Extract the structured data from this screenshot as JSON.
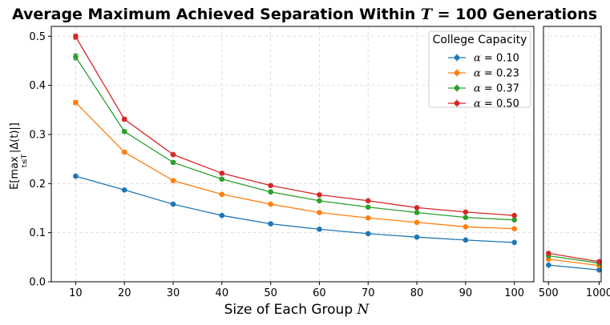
{
  "chart_data": {
    "type": "line",
    "title": "Average Maximum Achieved Separation Within T = 100 Generations",
    "title_parts": {
      "prefix": "Average Maximum Achieved Separation Within ",
      "var": "T",
      "suffix": " = 100 Generations"
    },
    "xlabel": "Size of Each Group N",
    "xlabel_parts": {
      "prefix": "Size of Each Group ",
      "var": "N"
    },
    "ylabel": "E[max |Δ(t)|] t≤T",
    "ylabel_parts": {
      "main": "E[max |Δ(t)|]",
      "sub": "t≤T"
    },
    "ylim": [
      0,
      0.52
    ],
    "yticks": [
      0.0,
      0.1,
      0.2,
      0.3,
      0.4,
      0.5
    ],
    "ytick_labels": [
      "0.0",
      "0.1",
      "0.2",
      "0.3",
      "0.4",
      "0.5"
    ],
    "grid": true,
    "legend": {
      "title": "College Capacity",
      "position": "top-right"
    },
    "main_panel": {
      "x": [
        10,
        20,
        30,
        40,
        50,
        60,
        70,
        80,
        90,
        100
      ],
      "xlim": [
        5,
        104
      ],
      "xticks": [
        10,
        20,
        30,
        40,
        50,
        60,
        70,
        80,
        90,
        100
      ],
      "xtick_labels": [
        "10",
        "20",
        "30",
        "40",
        "50",
        "60",
        "70",
        "80",
        "90",
        "100"
      ]
    },
    "inset_panel": {
      "x": [
        500,
        1000
      ],
      "xlim": [
        450,
        1020
      ],
      "xticks": [
        500,
        1000
      ],
      "xtick_labels": [
        "500",
        "1000"
      ]
    },
    "series": [
      {
        "name": "α = 0.10",
        "label_parts": {
          "var": "α",
          "value": " = 0.10"
        },
        "color": "#1f77b4",
        "values": [
          0.215,
          0.187,
          0.158,
          0.135,
          0.118,
          0.107,
          0.098,
          0.091,
          0.085,
          0.08
        ],
        "errors": [
          0.002,
          0.002,
          0.002,
          0.002,
          0.002,
          0.001,
          0.001,
          0.001,
          0.001,
          0.001
        ],
        "inset_values": [
          0.034,
          0.024
        ]
      },
      {
        "name": "α = 0.23",
        "label_parts": {
          "var": "α",
          "value": " = 0.23"
        },
        "color": "#ff7f0e",
        "values": [
          0.365,
          0.264,
          0.206,
          0.178,
          0.158,
          0.141,
          0.13,
          0.121,
          0.112,
          0.108
        ],
        "errors": [
          0.004,
          0.003,
          0.002,
          0.002,
          0.002,
          0.001,
          0.001,
          0.001,
          0.001,
          0.001
        ],
        "inset_values": [
          0.046,
          0.033
        ]
      },
      {
        "name": "α = 0.37",
        "label_parts": {
          "var": "α",
          "value": " = 0.37"
        },
        "color": "#2ca02c",
        "values": [
          0.458,
          0.306,
          0.243,
          0.209,
          0.183,
          0.165,
          0.152,
          0.141,
          0.131,
          0.126
        ],
        "errors": [
          0.006,
          0.003,
          0.002,
          0.002,
          0.002,
          0.001,
          0.001,
          0.001,
          0.001,
          0.001
        ],
        "inset_values": [
          0.053,
          0.038
        ]
      },
      {
        "name": "α = 0.50",
        "label_parts": {
          "var": "α",
          "value": " = 0.50"
        },
        "color": "#d62728",
        "values": [
          0.499,
          0.331,
          0.259,
          0.221,
          0.196,
          0.177,
          0.165,
          0.151,
          0.142,
          0.135
        ],
        "errors": [
          0.005,
          0.003,
          0.002,
          0.002,
          0.002,
          0.001,
          0.001,
          0.001,
          0.001,
          0.001
        ],
        "inset_values": [
          0.058,
          0.041
        ]
      }
    ]
  }
}
